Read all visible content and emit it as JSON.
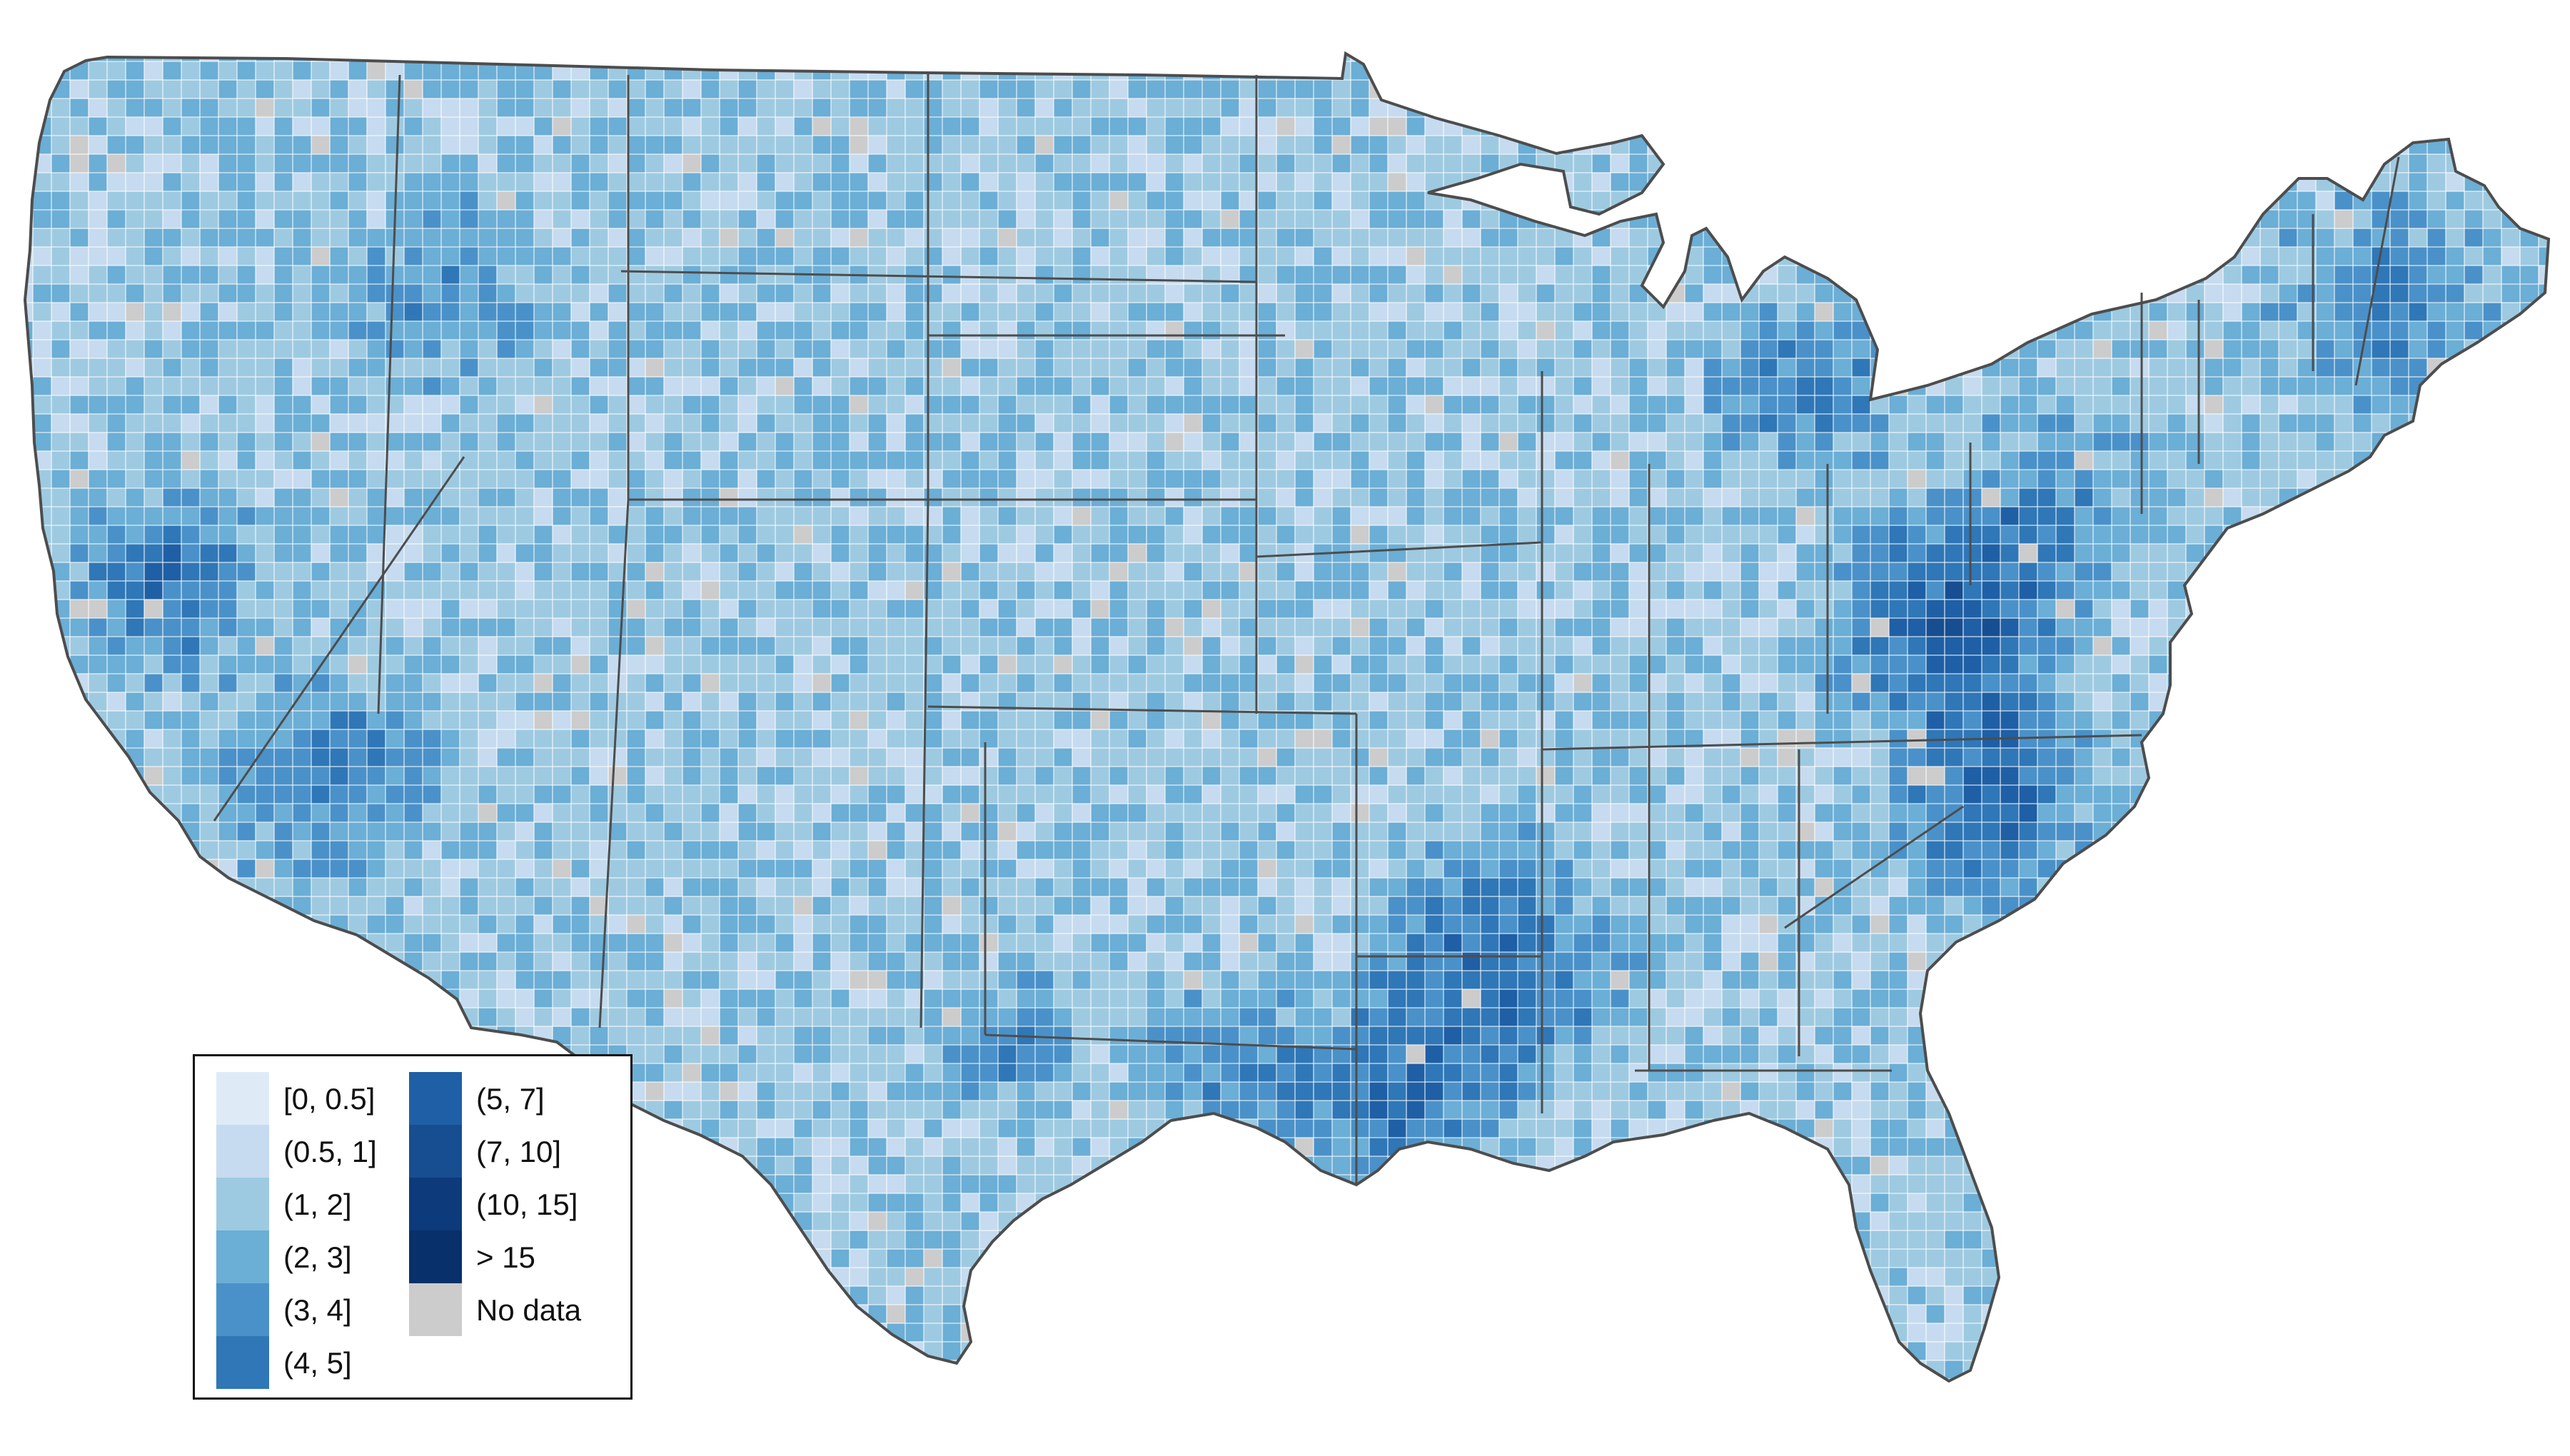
{
  "map": {
    "region": "contiguous-united-states",
    "unit_level": "county",
    "colors": {
      "bin_0": "#deebf7",
      "bin_1": "#c6dbef",
      "bin_2": "#9ecae1",
      "bin_3": "#6baed6",
      "bin_4": "#4a91c9",
      "bin_5": "#2f77b7",
      "bin_6": "#1f5fa5",
      "bin_7": "#174e91",
      "bin_8": "#0c3a7a",
      "bin_9": "#08306b",
      "no_data": "#cccccc",
      "border": "#4d4d4d"
    }
  },
  "legend": {
    "items": [
      {
        "label": "[0, 0.5]",
        "color": "#deebf7"
      },
      {
        "label": "(0.5, 1]",
        "color": "#c6dbef"
      },
      {
        "label": "(1, 2]",
        "color": "#9ecae1"
      },
      {
        "label": "(2, 3]",
        "color": "#6baed6"
      },
      {
        "label": "(3, 4]",
        "color": "#4a91c9"
      },
      {
        "label": "(4, 5]",
        "color": "#2f77b7"
      },
      {
        "label": "(5, 7]",
        "color": "#1f5fa5"
      },
      {
        "label": "(7, 10]",
        "color": "#174e91"
      },
      {
        "label": "(10, 15]",
        "color": "#0c3a7a"
      },
      {
        "label": "> 15",
        "color": "#08306b"
      },
      {
        "label": "No data",
        "color": "#cccccc"
      }
    ]
  }
}
